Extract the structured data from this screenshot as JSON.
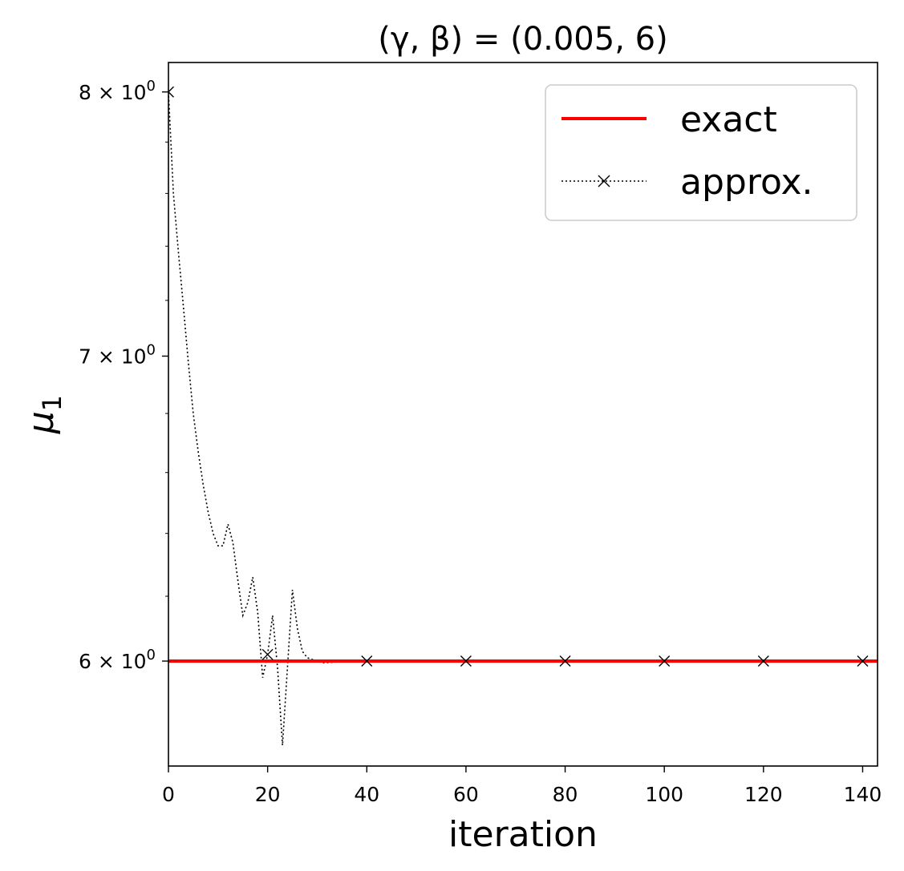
{
  "chart_data": {
    "type": "line",
    "title": "(γ, β) = (0.005, 6)",
    "xlabel": "iteration",
    "ylabel": "μ1",
    "ylabel_base": "μ",
    "ylabel_sub": "1",
    "xlim": [
      0,
      143
    ],
    "ylim": [
      5.69,
      8.12
    ],
    "yscale": "log",
    "xticks": [
      0,
      20,
      40,
      60,
      80,
      100,
      120,
      140
    ],
    "yticks": [
      {
        "value": 6,
        "mantissa": "6",
        "label": "6 × 10⁰"
      },
      {
        "value": 7,
        "mantissa": "7",
        "label": "7 × 10⁰"
      },
      {
        "value": 8,
        "mantissa": "8",
        "label": "8 × 10⁰"
      }
    ],
    "tick_base": "10",
    "tick_exp": "0",
    "tick_times": "×",
    "grid": false,
    "legend": {
      "position": "top-right"
    },
    "series": [
      {
        "name": "exact",
        "color": "#ff0000",
        "style": "solid",
        "marker": "none",
        "x": [
          0,
          143
        ],
        "y": [
          6.0,
          6.0
        ]
      },
      {
        "name": "approx.",
        "color": "#000000",
        "style": "dotted",
        "marker": "x",
        "markevery": 20,
        "x": [
          0,
          1,
          2,
          3,
          4,
          5,
          6,
          7,
          8,
          9,
          10,
          11,
          12,
          13,
          14,
          15,
          16,
          17,
          18,
          19,
          20,
          21,
          22,
          23,
          24,
          25,
          26,
          27,
          28,
          29,
          30,
          31,
          35,
          40,
          50,
          60,
          80,
          100,
          120,
          140,
          143
        ],
        "y": [
          8.0,
          7.6,
          7.38,
          7.18,
          6.98,
          6.8,
          6.67,
          6.56,
          6.47,
          6.4,
          6.36,
          6.36,
          6.43,
          6.37,
          6.25,
          6.14,
          6.18,
          6.26,
          6.15,
          5.95,
          6.02,
          6.14,
          5.98,
          5.75,
          5.98,
          6.22,
          6.1,
          6.03,
          6.01,
          6.005,
          6.0,
          5.995,
          5.998,
          6.0,
          6.0,
          6.0,
          6.0,
          6.0,
          6.0,
          6.0,
          6.0
        ]
      }
    ]
  }
}
